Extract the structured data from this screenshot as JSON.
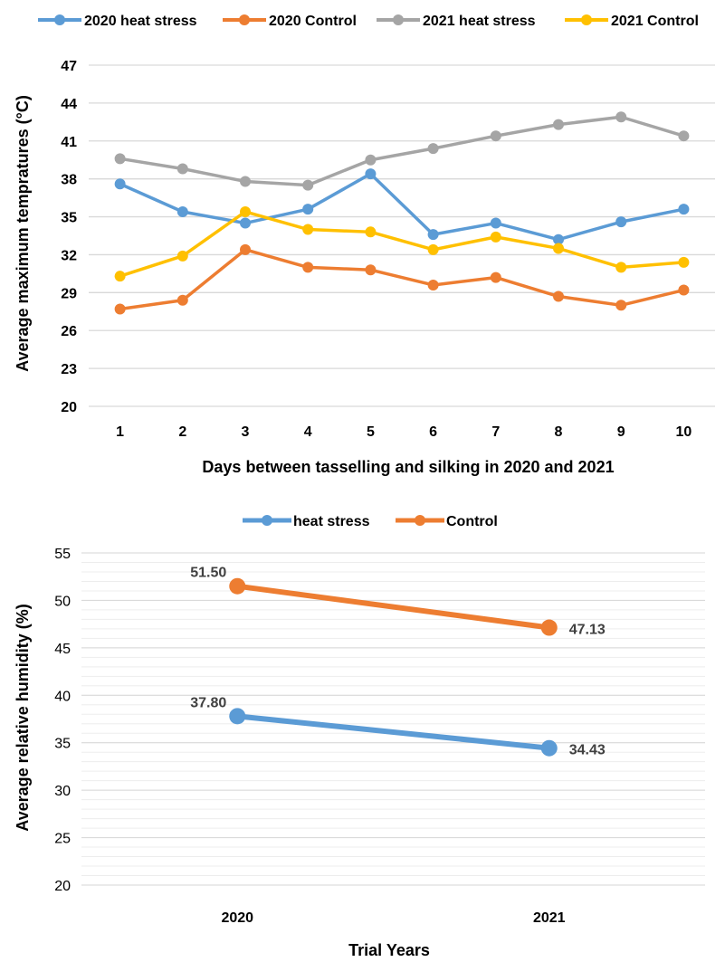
{
  "chart_data": [
    {
      "type": "line",
      "title": "",
      "xlabel": "Days between tasselling and silking in 2020 and 2021",
      "ylabel": "Average maximum tempratures (°C)",
      "ylim": [
        20,
        47
      ],
      "yticks": [
        "20",
        "23",
        "26",
        "29",
        "32",
        "35",
        "38",
        "41",
        "44",
        "47"
      ],
      "categories": [
        "1",
        "2",
        "3",
        "4",
        "5",
        "6",
        "7",
        "8",
        "9",
        "10"
      ],
      "grid": true,
      "legend_position": "top",
      "series": [
        {
          "name": "2020 heat stress",
          "color": "#5B9BD5",
          "values": [
            37.6,
            35.4,
            34.5,
            35.6,
            38.4,
            33.6,
            34.5,
            33.2,
            34.6,
            35.6
          ]
        },
        {
          "name": "2020 Control",
          "color": "#ED7D31",
          "values": [
            27.7,
            28.4,
            32.4,
            31.0,
            30.8,
            29.6,
            30.2,
            28.7,
            28.0,
            29.2
          ]
        },
        {
          "name": "2021 heat stress",
          "color": "#A5A5A5",
          "values": [
            39.6,
            38.8,
            37.8,
            37.5,
            39.5,
            40.4,
            41.4,
            42.3,
            42.9,
            41.4
          ]
        },
        {
          "name": "2021 Control",
          "color": "#FFC000",
          "values": [
            30.3,
            31.9,
            35.4,
            34.0,
            33.8,
            32.4,
            33.4,
            32.5,
            31.0,
            31.4
          ]
        }
      ]
    },
    {
      "type": "line",
      "title": "",
      "xlabel": "Trial Years",
      "ylabel": "Average  relative humidity (%)",
      "ylim": [
        20,
        55
      ],
      "yticks": [
        "20",
        "25",
        "30",
        "35",
        "40",
        "45",
        "50",
        "55"
      ],
      "categories": [
        "2020",
        "2021"
      ],
      "grid": true,
      "legend_position": "top",
      "series": [
        {
          "name": "heat stress",
          "color": "#5B9BD5",
          "values": [
            37.8,
            34.43
          ],
          "labels": [
            "37.80",
            "34.43"
          ]
        },
        {
          "name": "Control",
          "color": "#ED7D31",
          "values": [
            51.5,
            47.13
          ],
          "labels": [
            "51.50",
            "47.13"
          ]
        }
      ]
    }
  ]
}
